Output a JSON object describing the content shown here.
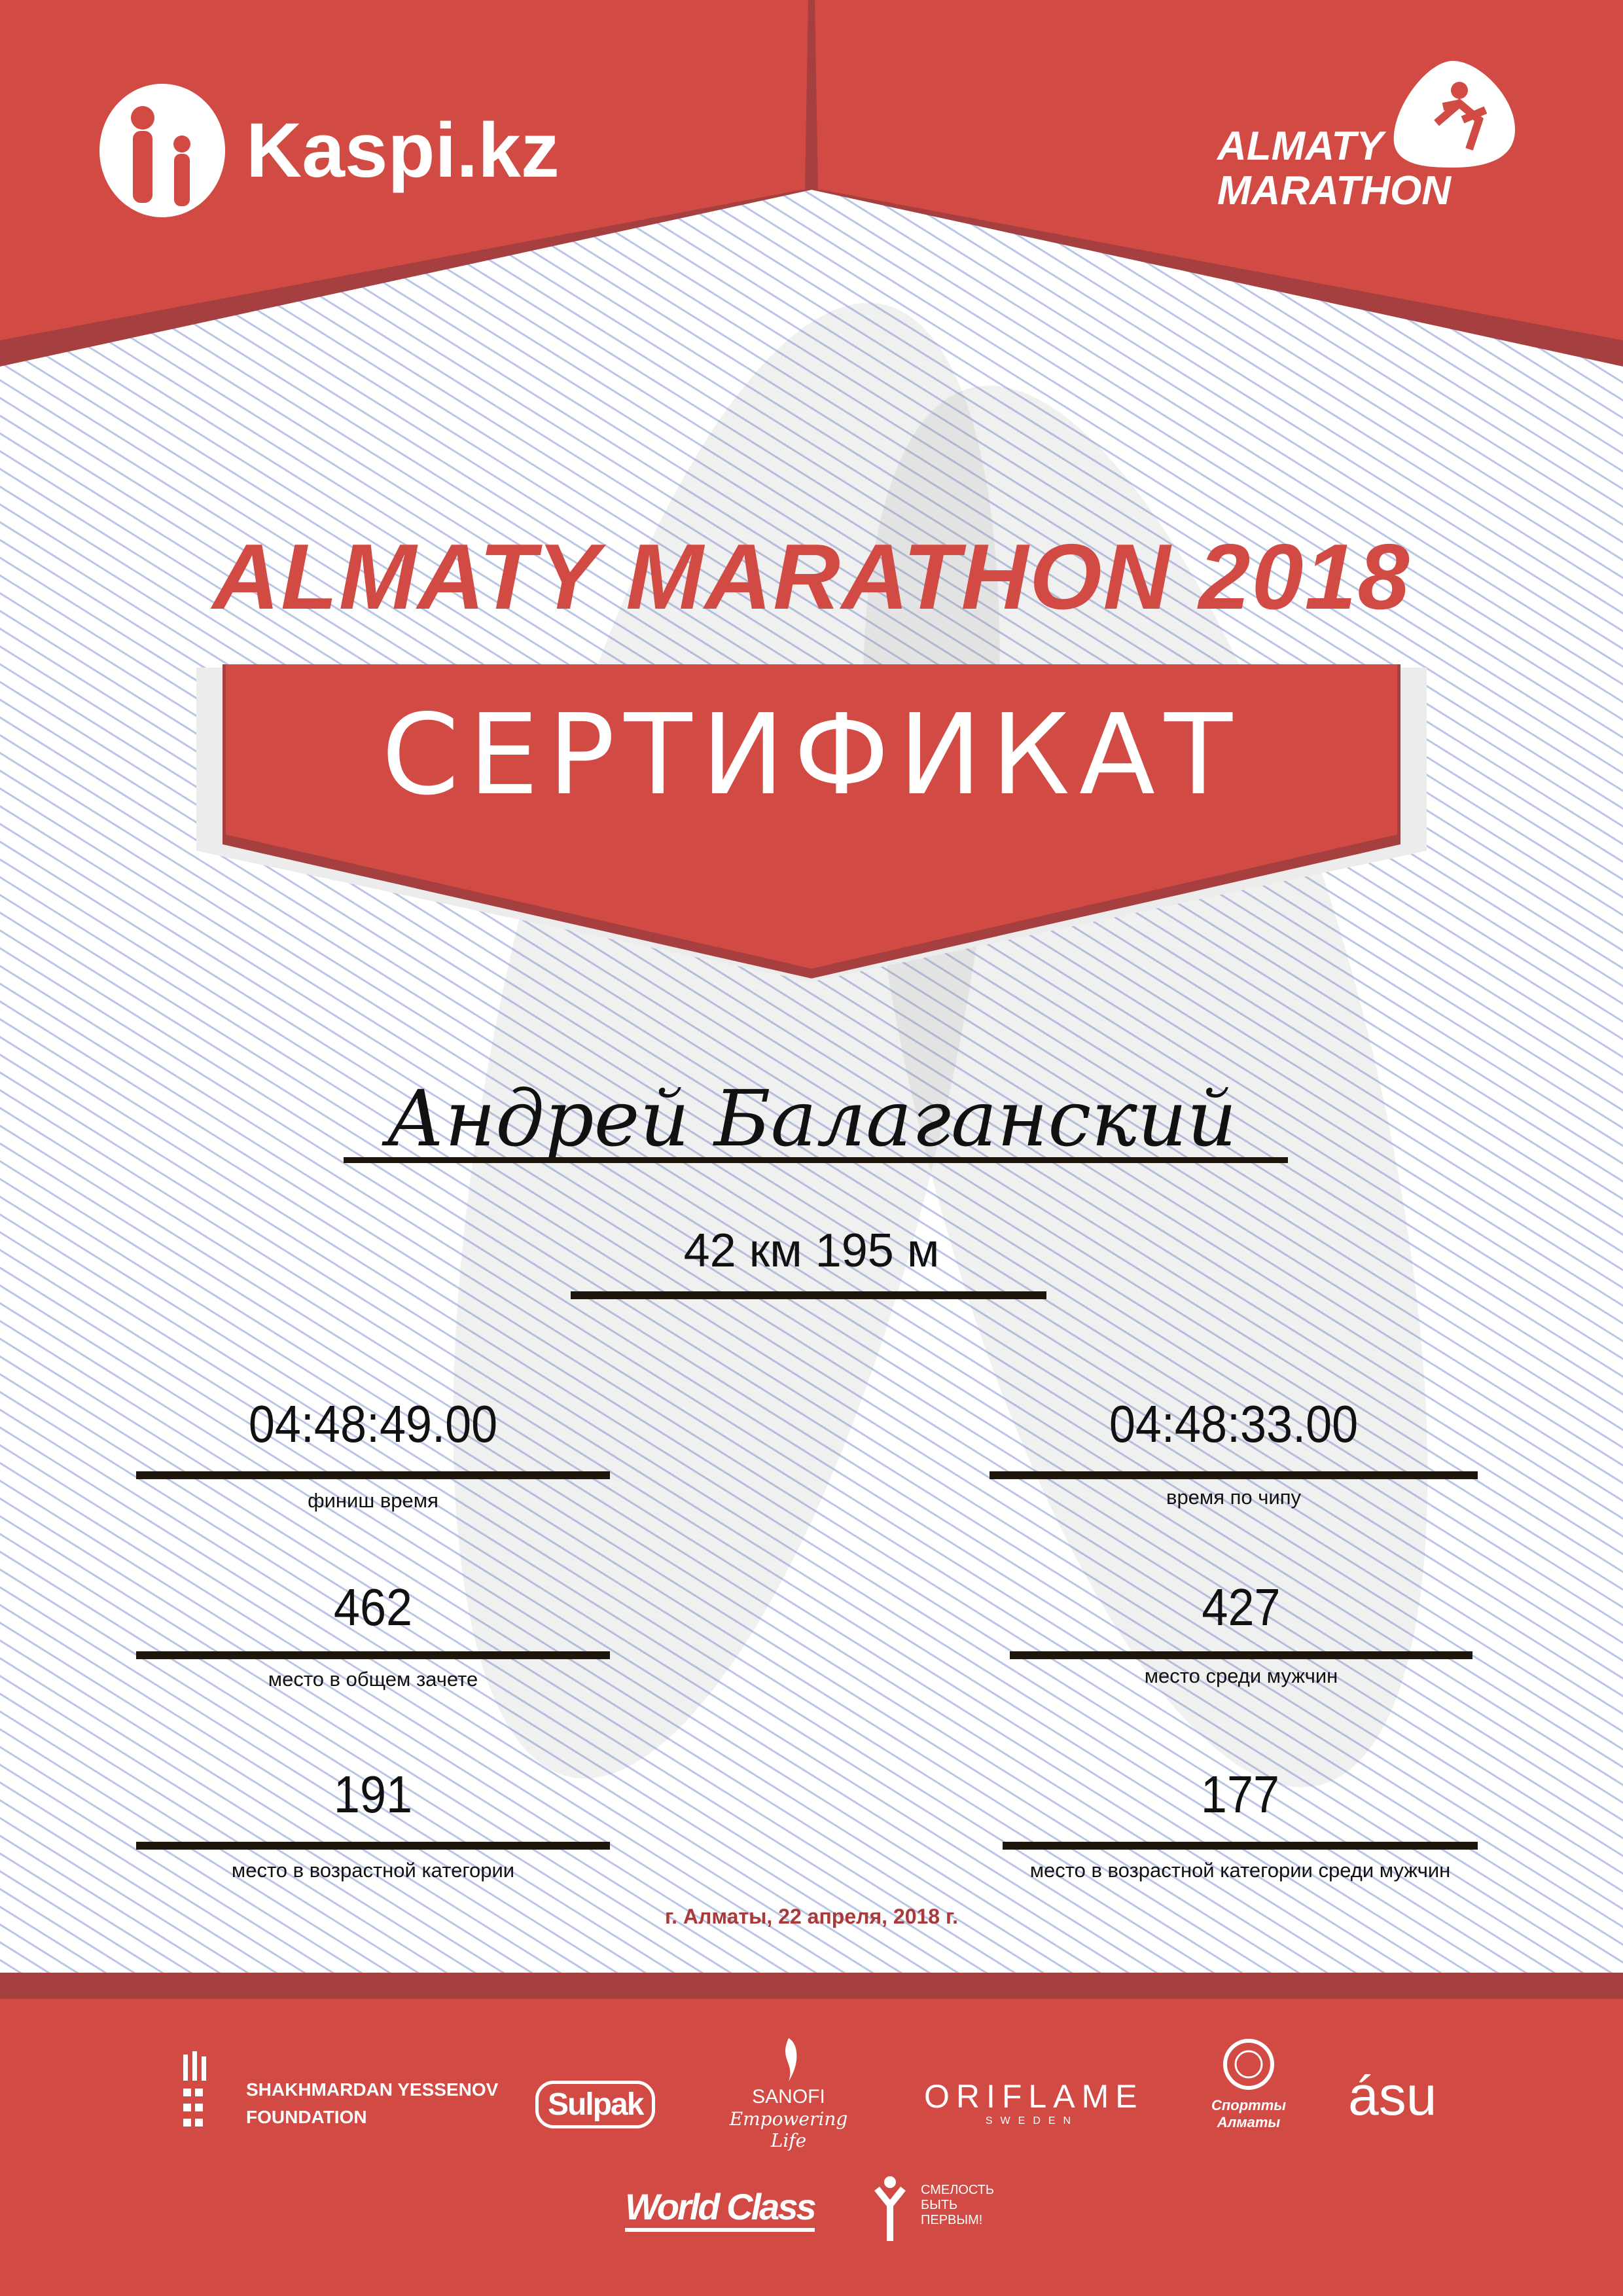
{
  "colors": {
    "brand_red": "#d24a44",
    "dark_red": "#a63f3f",
    "date_red": "#a83a3a",
    "text": "#111111"
  },
  "header": {
    "left_logo": {
      "icon": "kaspi-people-icon",
      "text": "Kaspi.kz"
    },
    "right_logo": {
      "icon": "runner-icon",
      "line1": "ALMATY",
      "line2": "MARATHON"
    }
  },
  "title": "ALMATY MARATHON 2018",
  "banner": "СЕРТИФИКАТ",
  "participant": {
    "name": "Андрей Балаганский",
    "distance": "42 км 195 м"
  },
  "results": [
    {
      "value": "04:48:49.00",
      "label": "финиш время"
    },
    {
      "value": "04:48:33.00",
      "label": "время по чипу"
    },
    {
      "value": "462",
      "label": "место в общем зачете"
    },
    {
      "value": "427",
      "label": "место среди мужчин"
    },
    {
      "value": "191",
      "label": "место в возрастной категории"
    },
    {
      "value": "177",
      "label": "место в возрастной категории среди мужчин"
    }
  ],
  "date": "г. Алматы, 22 апреля, 2018 г.",
  "sponsors": {
    "yessenov": {
      "line1": "SHAKHMARDAN YESSENOV",
      "line2": "FOUNDATION"
    },
    "sulpak": "Sulpak",
    "sanofi": {
      "name": "SANOFI",
      "tagline": "Empowering Life"
    },
    "oriflame": {
      "name": "ORIFLAME",
      "sub": "SWEDEN"
    },
    "sport_almaty": "Спортты Алматы",
    "asu": "ásu",
    "worldclass": "World Class",
    "smelost": {
      "line1": "СМЕЛОСТЬ",
      "line2": "БЫТЬ",
      "line3": "ПЕРВЫМ!"
    }
  }
}
